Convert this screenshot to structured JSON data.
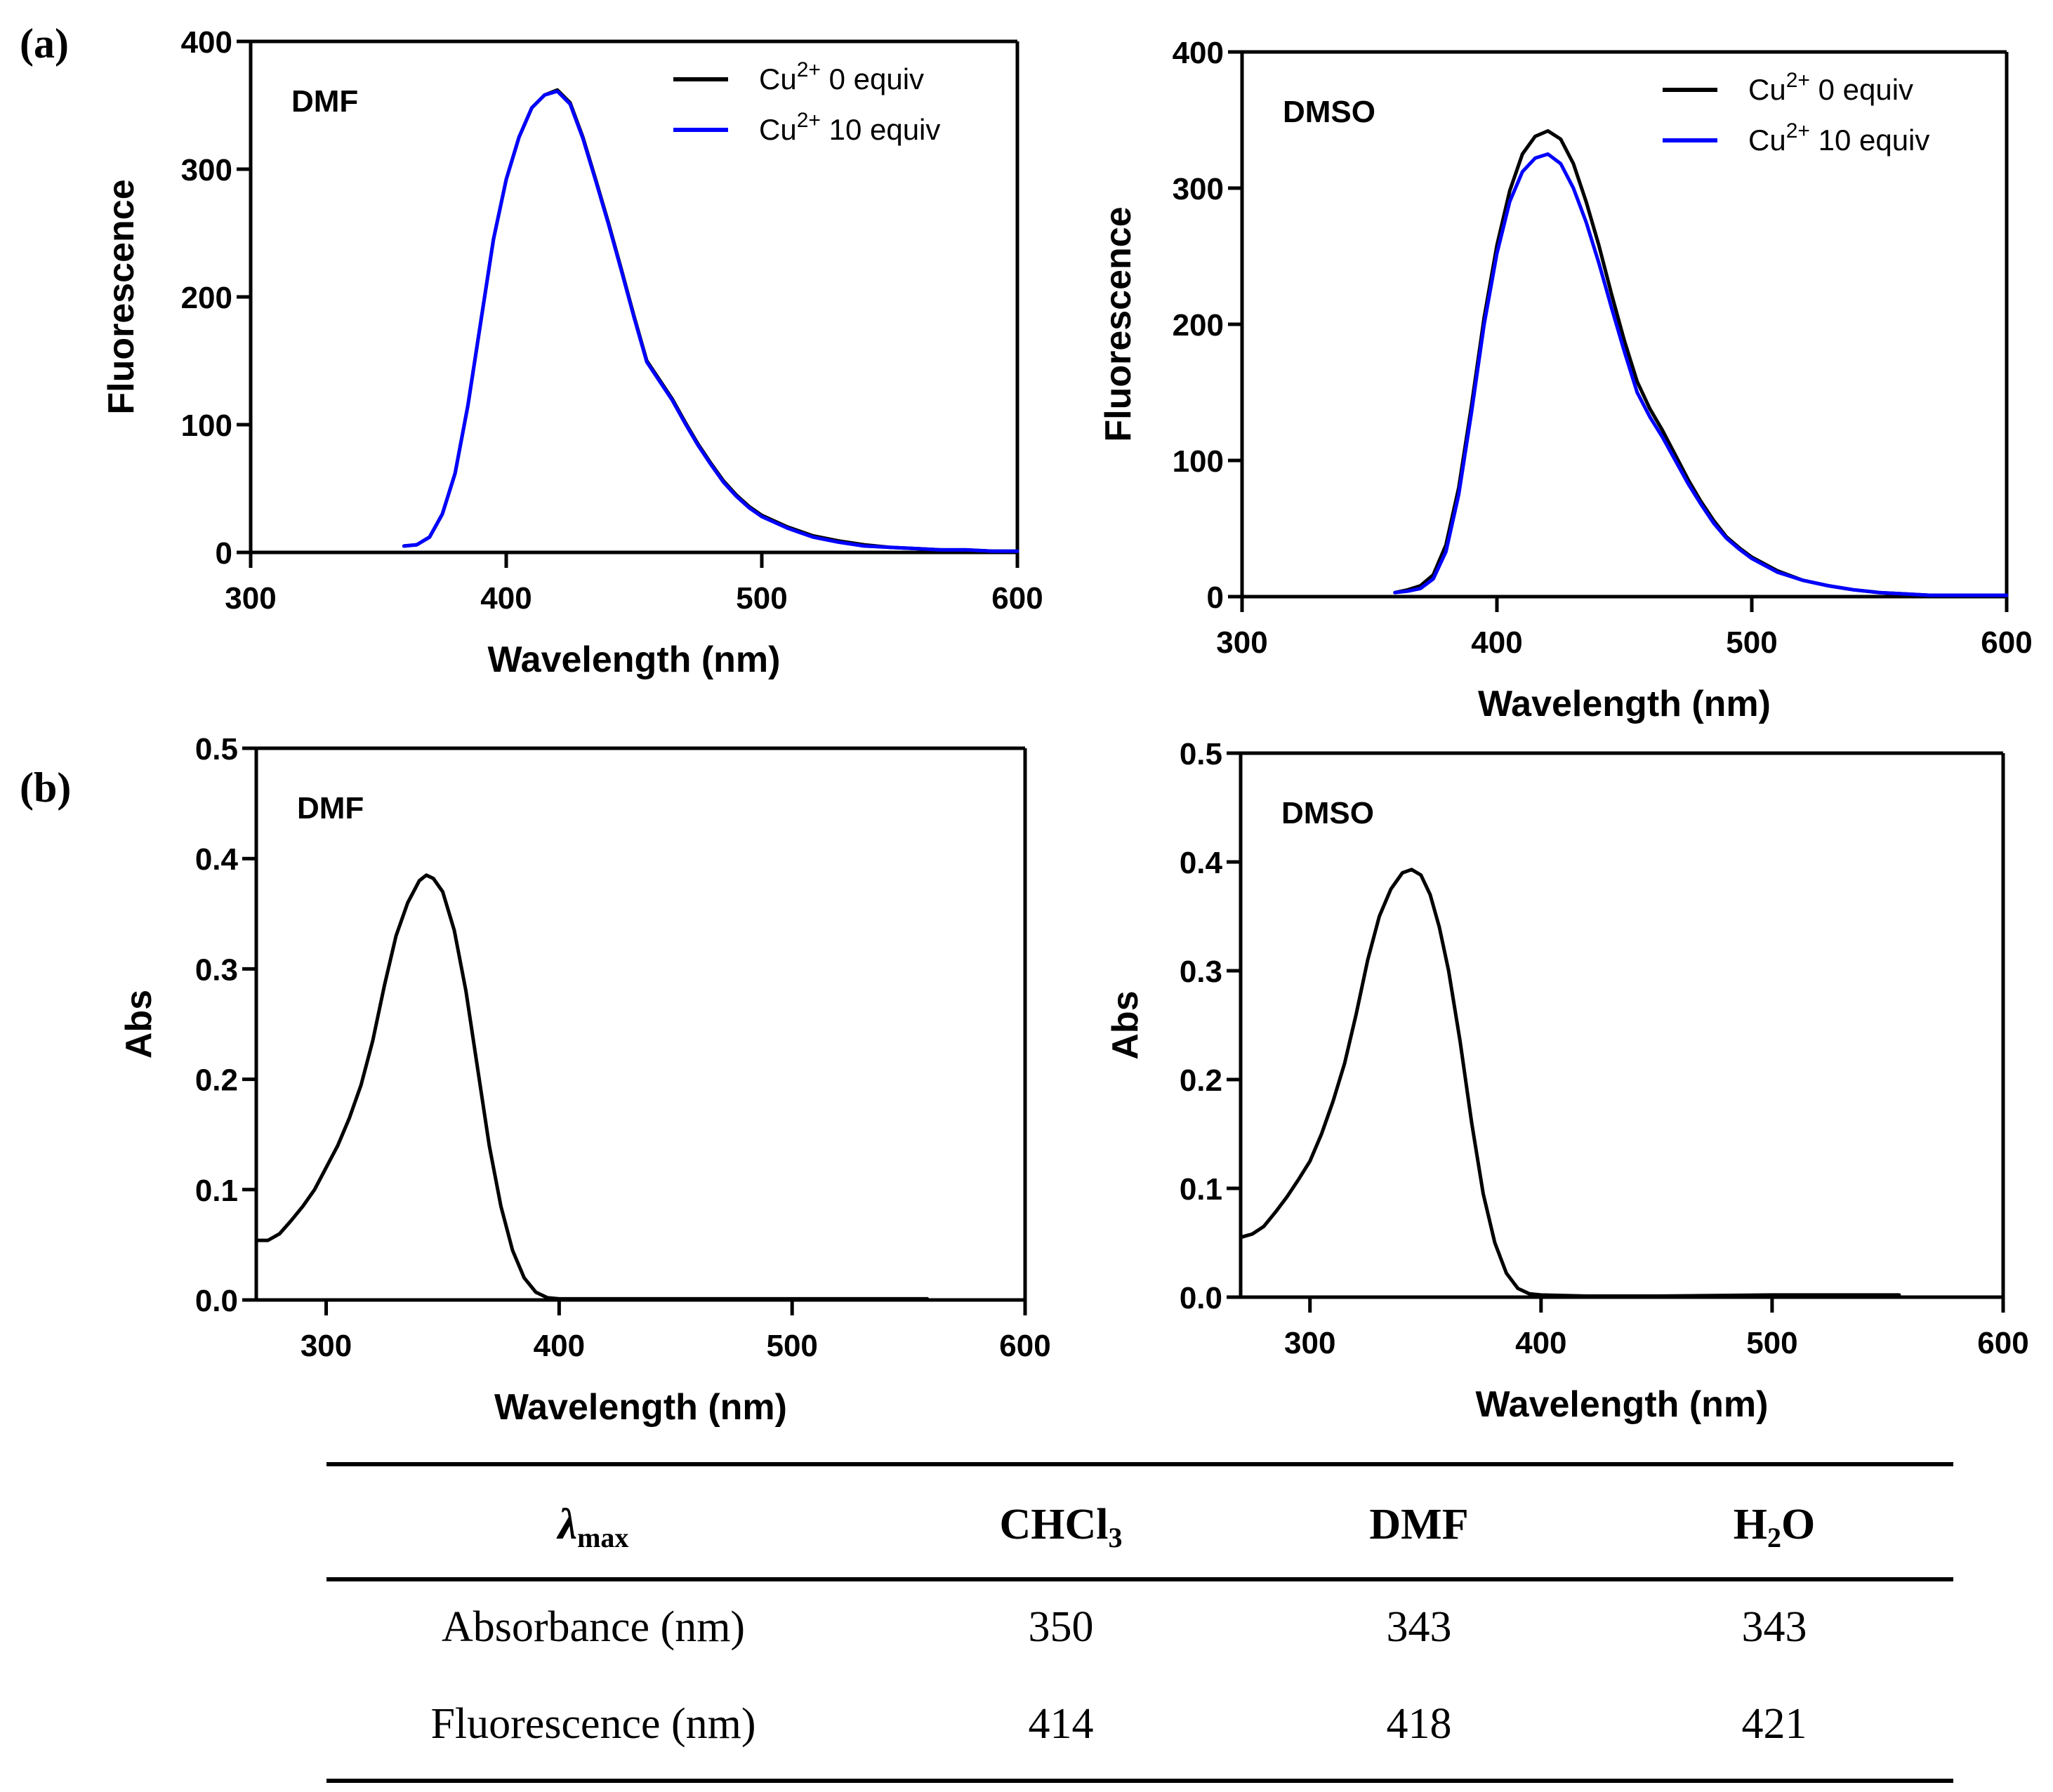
{
  "figure": {
    "panel_labels": [
      "(a)",
      "(b)"
    ]
  },
  "colors": {
    "cu0": "#000000",
    "cu10": "#0000ff",
    "axis": "#000000"
  },
  "legend": [
    {
      "base": "Cu",
      "sup": "2+",
      "text": " 0 equiv",
      "color_key": "cu0"
    },
    {
      "base": "Cu",
      "sup": "2+",
      "text": " 10 equiv",
      "color_key": "cu10"
    }
  ],
  "chart_data": [
    {
      "id": "fl-dmf",
      "type": "line",
      "panel": "(a)",
      "solvent_label": "DMF",
      "xlabel": "Wavelength (nm)",
      "ylabel": "Fluorescence",
      "xlim": [
        300,
        600
      ],
      "ylim": [
        0,
        400
      ],
      "xticks": [
        300,
        400,
        500,
        600
      ],
      "yticks": [
        0,
        100,
        200,
        300,
        400
      ],
      "grid": false,
      "legend_position": "top-right",
      "series": [
        {
          "name": "Cu2+ 0 equiv",
          "color_key": "cu0",
          "x": [
            360,
            365,
            370,
            375,
            380,
            385,
            390,
            395,
            400,
            405,
            410,
            415,
            420,
            425,
            430,
            435,
            440,
            445,
            450,
            455,
            460,
            465,
            470,
            475,
            480,
            485,
            490,
            495,
            500,
            510,
            520,
            530,
            540,
            550,
            560,
            570,
            580,
            590,
            600
          ],
          "y": [
            5,
            6,
            12,
            30,
            62,
            115,
            180,
            245,
            292,
            325,
            348,
            358,
            362,
            352,
            325,
            292,
            258,
            222,
            185,
            150,
            135,
            120,
            102,
            85,
            70,
            56,
            45,
            36,
            29,
            20,
            13,
            9,
            6,
            4,
            3,
            2,
            2,
            1,
            1
          ]
        },
        {
          "name": "Cu2+ 10 equiv",
          "color_key": "cu10",
          "x": [
            360,
            365,
            370,
            375,
            380,
            385,
            390,
            395,
            400,
            405,
            410,
            415,
            420,
            425,
            430,
            435,
            440,
            445,
            450,
            455,
            460,
            465,
            470,
            475,
            480,
            485,
            490,
            495,
            500,
            510,
            520,
            530,
            540,
            550,
            560,
            570,
            580,
            590,
            600
          ],
          "y": [
            5,
            6,
            12,
            30,
            62,
            115,
            180,
            245,
            292,
            325,
            348,
            358,
            361,
            351,
            324,
            291,
            257,
            221,
            184,
            149,
            134,
            119,
            101,
            84,
            69,
            55,
            44,
            35,
            28,
            19,
            12,
            8,
            5,
            4,
            3,
            2,
            2,
            1,
            1
          ]
        }
      ]
    },
    {
      "id": "fl-dmso",
      "type": "line",
      "panel": "(a)",
      "solvent_label": "DMSO",
      "xlabel": "Wavelength (nm)",
      "ylabel": "Fluorescence",
      "xlim": [
        300,
        600
      ],
      "ylim": [
        0,
        400
      ],
      "xticks": [
        300,
        400,
        500,
        600
      ],
      "yticks": [
        0,
        100,
        200,
        300,
        400
      ],
      "grid": false,
      "legend_position": "top-right",
      "series": [
        {
          "name": "Cu2+ 0 equiv",
          "color_key": "cu0",
          "x": [
            360,
            365,
            370,
            375,
            380,
            385,
            390,
            395,
            400,
            405,
            410,
            415,
            420,
            425,
            430,
            435,
            440,
            445,
            450,
            455,
            460,
            465,
            470,
            475,
            480,
            485,
            490,
            495,
            500,
            510,
            520,
            530,
            540,
            550,
            560,
            570,
            580,
            590,
            600
          ],
          "y": [
            3,
            5,
            8,
            16,
            38,
            80,
            140,
            205,
            258,
            298,
            325,
            338,
            342,
            336,
            318,
            290,
            258,
            222,
            188,
            158,
            138,
            122,
            104,
            86,
            70,
            56,
            44,
            36,
            29,
            19,
            12,
            8,
            5,
            3,
            2,
            1,
            1,
            1,
            1
          ]
        },
        {
          "name": "Cu2+ 10 equiv",
          "color_key": "cu10",
          "x": [
            360,
            365,
            370,
            375,
            380,
            385,
            390,
            395,
            400,
            405,
            410,
            415,
            420,
            425,
            430,
            435,
            440,
            445,
            450,
            455,
            460,
            465,
            470,
            475,
            480,
            485,
            490,
            495,
            500,
            510,
            520,
            530,
            540,
            550,
            560,
            570,
            580,
            590,
            600
          ],
          "y": [
            3,
            4,
            6,
            13,
            33,
            75,
            135,
            200,
            252,
            290,
            312,
            322,
            325,
            318,
            300,
            275,
            245,
            212,
            180,
            150,
            132,
            117,
            100,
            83,
            68,
            54,
            43,
            35,
            28,
            18,
            12,
            8,
            5,
            3,
            2,
            1,
            1,
            1,
            1
          ]
        }
      ]
    },
    {
      "id": "abs-dmf",
      "type": "line",
      "panel": "(b)",
      "solvent_label": "DMF",
      "xlabel": "Wavelength (nm)",
      "ylabel": "Abs",
      "xlim": [
        270,
        600
      ],
      "ylim": [
        0,
        0.5
      ],
      "xticks": [
        300,
        400,
        500,
        600
      ],
      "yticks": [
        0.0,
        0.1,
        0.2,
        0.3,
        0.4,
        0.5
      ],
      "ytick_labels": [
        "0.0",
        "0.1",
        "0.2",
        "0.3",
        "0.4",
        "0.5"
      ],
      "grid": false,
      "series": [
        {
          "name": "Abs",
          "color_key": "cu0",
          "x": [
            270,
            275,
            280,
            285,
            290,
            295,
            300,
            305,
            310,
            315,
            320,
            325,
            330,
            335,
            340,
            343,
            346,
            350,
            355,
            360,
            365,
            370,
            375,
            380,
            385,
            390,
            395,
            400,
            420,
            450,
            500,
            558
          ],
          "y": [
            0.054,
            0.054,
            0.06,
            0.072,
            0.085,
            0.1,
            0.12,
            0.14,
            0.165,
            0.195,
            0.235,
            0.285,
            0.33,
            0.36,
            0.38,
            0.385,
            0.382,
            0.37,
            0.335,
            0.28,
            0.21,
            0.14,
            0.085,
            0.045,
            0.02,
            0.007,
            0.002,
            0.001,
            0.001,
            0.001,
            0.001,
            0.001
          ]
        }
      ]
    },
    {
      "id": "abs-dmso",
      "type": "line",
      "panel": "(b)",
      "solvent_label": "DMSO",
      "xlabel": "Wavelength (nm)",
      "ylabel": "Abs",
      "xlim": [
        270,
        600
      ],
      "ylim": [
        0,
        0.5
      ],
      "xticks": [
        300,
        400,
        500,
        600
      ],
      "yticks": [
        0.0,
        0.1,
        0.2,
        0.3,
        0.4,
        0.5
      ],
      "ytick_labels": [
        "0.0",
        "0.1",
        "0.2",
        "0.3",
        "0.4",
        "0.5"
      ],
      "grid": false,
      "series": [
        {
          "name": "Abs",
          "color_key": "cu0",
          "x": [
            270,
            275,
            280,
            285,
            290,
            295,
            300,
            305,
            310,
            315,
            320,
            325,
            330,
            335,
            340,
            344,
            348,
            352,
            356,
            360,
            365,
            370,
            375,
            380,
            385,
            390,
            395,
            400,
            420,
            450,
            500,
            555
          ],
          "y": [
            0.055,
            0.058,
            0.065,
            0.078,
            0.092,
            0.108,
            0.125,
            0.15,
            0.18,
            0.215,
            0.26,
            0.31,
            0.35,
            0.375,
            0.39,
            0.393,
            0.388,
            0.37,
            0.34,
            0.3,
            0.235,
            0.16,
            0.095,
            0.05,
            0.022,
            0.008,
            0.003,
            0.002,
            0.001,
            0.001,
            0.002,
            0.002
          ]
        }
      ]
    }
  ],
  "table": {
    "header": {
      "label_main": "λ",
      "label_sub": "max",
      "columns": [
        {
          "main": "CHCl",
          "sub": "3",
          "tail": ""
        },
        {
          "main": "DMF",
          "sub": "",
          "tail": ""
        },
        {
          "main": "H",
          "sub": "2",
          "tail": "O"
        }
      ]
    },
    "rows": [
      {
        "label": "Absorbance (nm)",
        "values": [
          "350",
          "343",
          "343"
        ]
      },
      {
        "label": "Fluorescence (nm)",
        "values": [
          "414",
          "418",
          "421"
        ]
      }
    ]
  }
}
